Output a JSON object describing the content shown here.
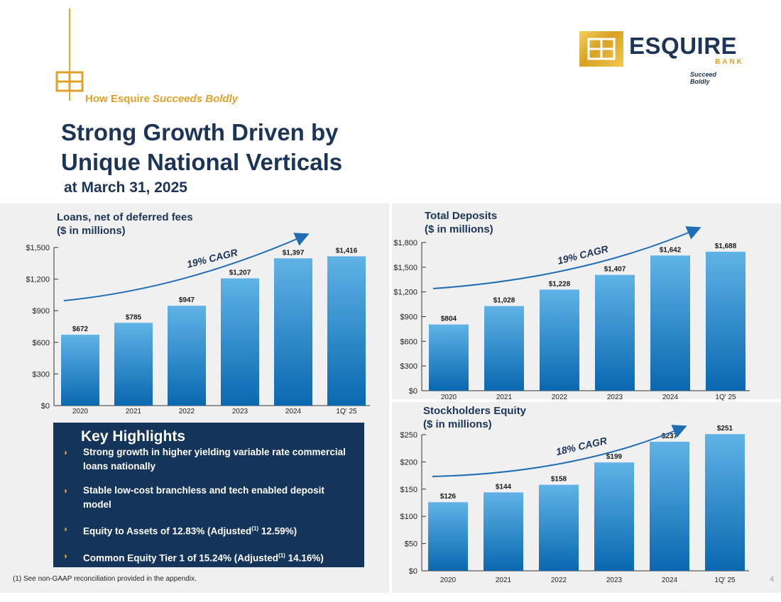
{
  "header": {
    "tagline_prefix": "How Esquire ",
    "tagline_emphasis": "Succeeds Boldly",
    "title_line1": "Strong Growth Driven by",
    "title_line2": "Unique National Verticals",
    "subtitle": "at March 31, 2025"
  },
  "logo": {
    "name": "ESQUIRE",
    "bank": "BANK",
    "slogan": "Succeed Boldly"
  },
  "colors": {
    "navy": "#1c3557",
    "gold": "#e0a12a",
    "bar_top": "#5fb3e6",
    "bar_bottom": "#0a68b0",
    "arrow": "#1f6db3"
  },
  "chart_data": [
    {
      "type": "bar",
      "title_line1": "Loans, net of deferred fees",
      "title_line2": "($ in millions)",
      "categories": [
        "2020",
        "2021",
        "2022",
        "2023",
        "2024",
        "1Q' 25"
      ],
      "values": [
        672,
        785,
        947,
        1207,
        1397,
        1416
      ],
      "value_labels": [
        "$672",
        "$785",
        "$947",
        "$1,207",
        "$1,397",
        "$1,416"
      ],
      "ylim": [
        0,
        1500
      ],
      "ticks": [
        0,
        300,
        600,
        900,
        1200,
        1500
      ],
      "tick_labels": [
        "$0",
        "$300",
        "$600",
        "$900",
        "$1,200",
        "$1,500"
      ],
      "annotation": "19% CAGR"
    },
    {
      "type": "bar",
      "title_line1": "Total Deposits",
      "title_line2": "($ in millions)",
      "categories": [
        "2020",
        "2021",
        "2022",
        "2023",
        "2024",
        "1Q' 25"
      ],
      "values": [
        804,
        1028,
        1228,
        1407,
        1642,
        1688
      ],
      "value_labels": [
        "$804",
        "$1,028",
        "$1,228",
        "$1,407",
        "$1,642",
        "$1,688"
      ],
      "ylim": [
        0,
        1800
      ],
      "ticks": [
        0,
        300,
        600,
        900,
        1200,
        1500,
        1800
      ],
      "tick_labels": [
        "$0",
        "$300",
        "$600",
        "$900",
        "$1,200",
        "$1,500",
        "$1,800"
      ],
      "annotation": "19% CAGR"
    },
    {
      "type": "bar",
      "title_line1": "Stockholders Equity",
      "title_line2": "($ in millions)",
      "categories": [
        "2020",
        "2021",
        "2022",
        "2023",
        "2024",
        "1Q' 25"
      ],
      "values": [
        126,
        144,
        158,
        199,
        237,
        251
      ],
      "value_labels": [
        "$126",
        "$144",
        "$158",
        "$199",
        "$237",
        "$251"
      ],
      "ylim": [
        0,
        250
      ],
      "ticks": [
        0,
        50,
        100,
        150,
        200,
        250
      ],
      "tick_labels": [
        "$0",
        "$50",
        "$100",
        "$150",
        "$200",
        "$250"
      ],
      "annotation": "18% CAGR"
    }
  ],
  "highlights": {
    "title": "Key Highlights",
    "items": [
      {
        "text": "Strong growth in higher yielding variable rate commercial loans nationally"
      },
      {
        "text": "Stable low-cost branchless and tech enabled deposit model"
      },
      {
        "text": "Equity to Assets of 12.83% (Adjusted",
        "sup": "(1)",
        "tail": " 12.59%)"
      },
      {
        "text": "Common Equity Tier 1 of 15.24% (Adjusted",
        "sup": "(1)",
        "tail": " 14.16%)"
      }
    ]
  },
  "footnote": "(1) See non-GAAP reconciliation provided in the appendix.",
  "page_number": "4"
}
